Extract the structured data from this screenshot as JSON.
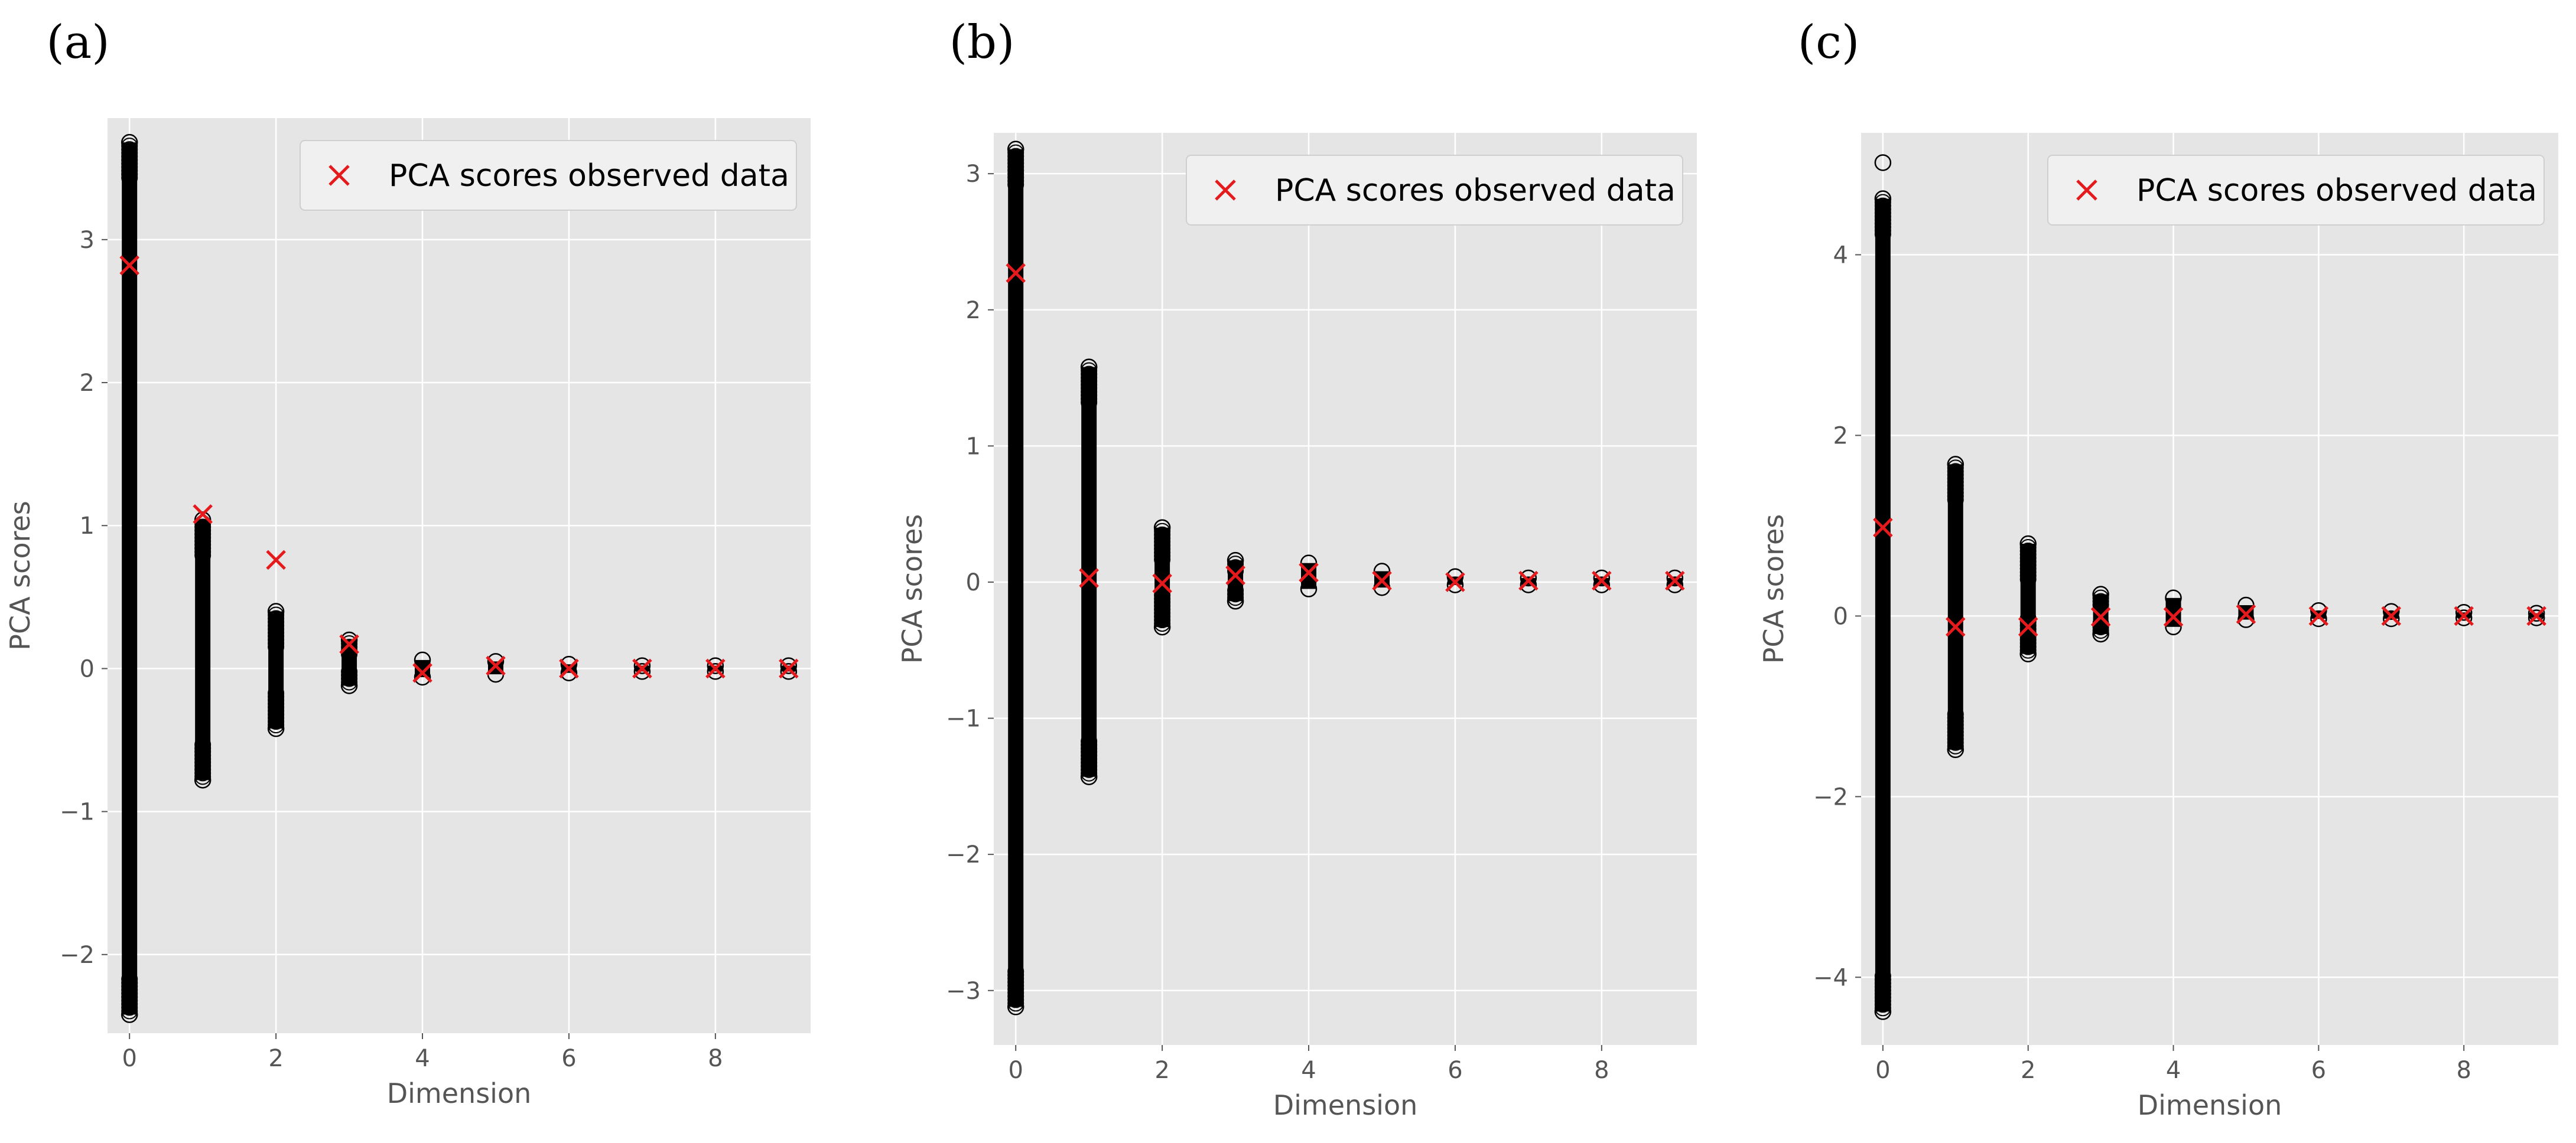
{
  "colors": {
    "plot_background": "#e5e5e5",
    "grid": "#ffffff",
    "simulated_marker": "#000000",
    "observed_marker": "#e41a1c",
    "legend_background": "#f0f0f0",
    "legend_border": "#cfcfcf"
  },
  "chart_data": [
    {
      "panel_label": "(a)",
      "type": "scatter",
      "xlabel": "Dimension",
      "ylabel": "PCA scores",
      "xlim": [
        -0.3,
        9.3
      ],
      "ylim": [
        -2.55,
        3.85
      ],
      "xticks": [
        0,
        2,
        4,
        6,
        8
      ],
      "yticks": [
        -2,
        -1,
        0,
        1,
        2,
        3
      ],
      "grid": true,
      "legend": {
        "label": "PCA scores observed data",
        "position": "top-right"
      },
      "simulated_ranges": [
        {
          "x": 0,
          "min": -2.42,
          "max": 3.68
        },
        {
          "x": 1,
          "min": -0.78,
          "max": 1.04
        },
        {
          "x": 2,
          "min": -0.42,
          "max": 0.4
        },
        {
          "x": 3,
          "min": -0.12,
          "max": 0.2
        },
        {
          "x": 4,
          "min": -0.06,
          "max": 0.06
        },
        {
          "x": 5,
          "min": -0.04,
          "max": 0.05
        },
        {
          "x": 6,
          "min": -0.03,
          "max": 0.03
        },
        {
          "x": 7,
          "min": -0.02,
          "max": 0.02
        },
        {
          "x": 8,
          "min": -0.02,
          "max": 0.02
        },
        {
          "x": 9,
          "min": -0.02,
          "max": 0.02
        }
      ],
      "observed": {
        "x": [
          0,
          1,
          2,
          3,
          4,
          5,
          6,
          7,
          8,
          9
        ],
        "y": [
          2.82,
          1.08,
          0.76,
          0.17,
          -0.03,
          0.02,
          0.0,
          0.0,
          0.0,
          0.0
        ]
      }
    },
    {
      "panel_label": "(b)",
      "type": "scatter",
      "xlabel": "Dimension",
      "ylabel": "PCA scores",
      "xlim": [
        -0.3,
        9.3
      ],
      "ylim": [
        -3.4,
        3.3
      ],
      "xticks": [
        0,
        2,
        4,
        6,
        8
      ],
      "yticks": [
        -3,
        -2,
        -1,
        0,
        1,
        2,
        3
      ],
      "grid": true,
      "legend": {
        "label": "PCA scores observed data",
        "position": "top-right"
      },
      "simulated_ranges": [
        {
          "x": 0,
          "min": -3.12,
          "max": 3.18
        },
        {
          "x": 1,
          "min": -1.43,
          "max": 1.58
        },
        {
          "x": 2,
          "min": -0.33,
          "max": 0.4
        },
        {
          "x": 3,
          "min": -0.14,
          "max": 0.16
        },
        {
          "x": 4,
          "min": -0.05,
          "max": 0.14
        },
        {
          "x": 5,
          "min": -0.04,
          "max": 0.08
        },
        {
          "x": 6,
          "min": -0.02,
          "max": 0.04
        },
        {
          "x": 7,
          "min": -0.02,
          "max": 0.03
        },
        {
          "x": 8,
          "min": -0.02,
          "max": 0.03
        },
        {
          "x": 9,
          "min": -0.02,
          "max": 0.03
        }
      ],
      "observed": {
        "x": [
          0,
          1,
          2,
          3,
          4,
          5,
          6,
          7,
          8,
          9
        ],
        "y": [
          2.27,
          0.03,
          -0.01,
          0.05,
          0.07,
          0.01,
          0.0,
          0.01,
          0.01,
          0.01
        ]
      }
    },
    {
      "panel_label": "(c)",
      "type": "scatter",
      "xlabel": "Dimension",
      "ylabel": "PCA scores",
      "xlim": [
        -0.3,
        9.3
      ],
      "ylim": [
        -4.75,
        5.35
      ],
      "xticks": [
        0,
        2,
        4,
        6,
        8
      ],
      "yticks": [
        -4,
        -2,
        0,
        2,
        4
      ],
      "grid": true,
      "legend": {
        "label": "PCA scores observed data",
        "position": "top-right"
      },
      "simulated_ranges": [
        {
          "x": 0,
          "min": -4.38,
          "max": 4.62
        },
        {
          "x": 1,
          "min": -1.48,
          "max": 1.68
        },
        {
          "x": 2,
          "min": -0.42,
          "max": 0.8
        },
        {
          "x": 3,
          "min": -0.2,
          "max": 0.24
        },
        {
          "x": 4,
          "min": -0.12,
          "max": 0.2
        },
        {
          "x": 5,
          "min": -0.04,
          "max": 0.12
        },
        {
          "x": 6,
          "min": -0.03,
          "max": 0.06
        },
        {
          "x": 7,
          "min": -0.03,
          "max": 0.05
        },
        {
          "x": 8,
          "min": -0.02,
          "max": 0.04
        },
        {
          "x": 9,
          "min": -0.02,
          "max": 0.03
        }
      ],
      "simulated_outliers": [
        {
          "x": 0,
          "y": 5.02
        }
      ],
      "observed": {
        "x": [
          0,
          1,
          2,
          3,
          4,
          5,
          6,
          7,
          8,
          9
        ],
        "y": [
          0.98,
          -0.12,
          -0.12,
          -0.01,
          -0.01,
          0.02,
          0.0,
          0.0,
          0.0,
          0.0
        ]
      }
    }
  ]
}
